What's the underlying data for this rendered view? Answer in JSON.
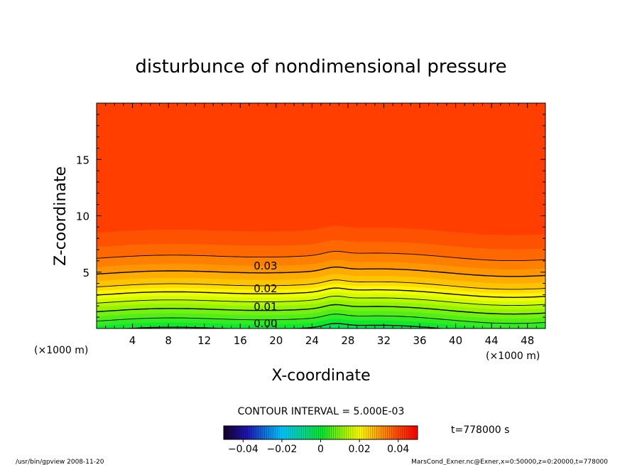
{
  "chart_data": {
    "type": "contour",
    "title": "disturbunce of nondimensional pressure",
    "xlabel": "X-coordinate",
    "ylabel": "Z-coordinate",
    "x_unit": "(×1000 m)",
    "z_unit": "(×1000 m)",
    "xlim": [
      0,
      50
    ],
    "zlim": [
      0,
      20
    ],
    "x_ticks": [
      4,
      8,
      12,
      16,
      20,
      24,
      28,
      32,
      36,
      40,
      44,
      48
    ],
    "z_ticks": [
      5,
      10,
      15
    ],
    "contour_interval_text": "CONTOUR INTERVAL = 5.000E-03",
    "contour_labels": [
      {
        "text": "0.03",
        "x": 17.5,
        "z": 5.6
      },
      {
        "text": "0.02",
        "x": 17.5,
        "z": 3.6
      },
      {
        "text": "0.01",
        "x": 17.5,
        "z": 2.0
      },
      {
        "text": "0.00",
        "x": 17.5,
        "z": 0.5
      }
    ],
    "colorbar": {
      "min": -0.05,
      "max": 0.05,
      "tick_values": [
        -0.04,
        -0.02,
        0,
        0.02,
        0.04
      ],
      "tick_labels": [
        "−0.04",
        "−0.02",
        "0",
        "0.02",
        "0.04"
      ]
    },
    "time_label": "t=778000 s",
    "footer_left": "/usr/bin/gpview   2008-11-20",
    "footer_right": "MarsCond_Exner.nc@Exner,x=0:50000,z=0:20000,t=778000"
  }
}
